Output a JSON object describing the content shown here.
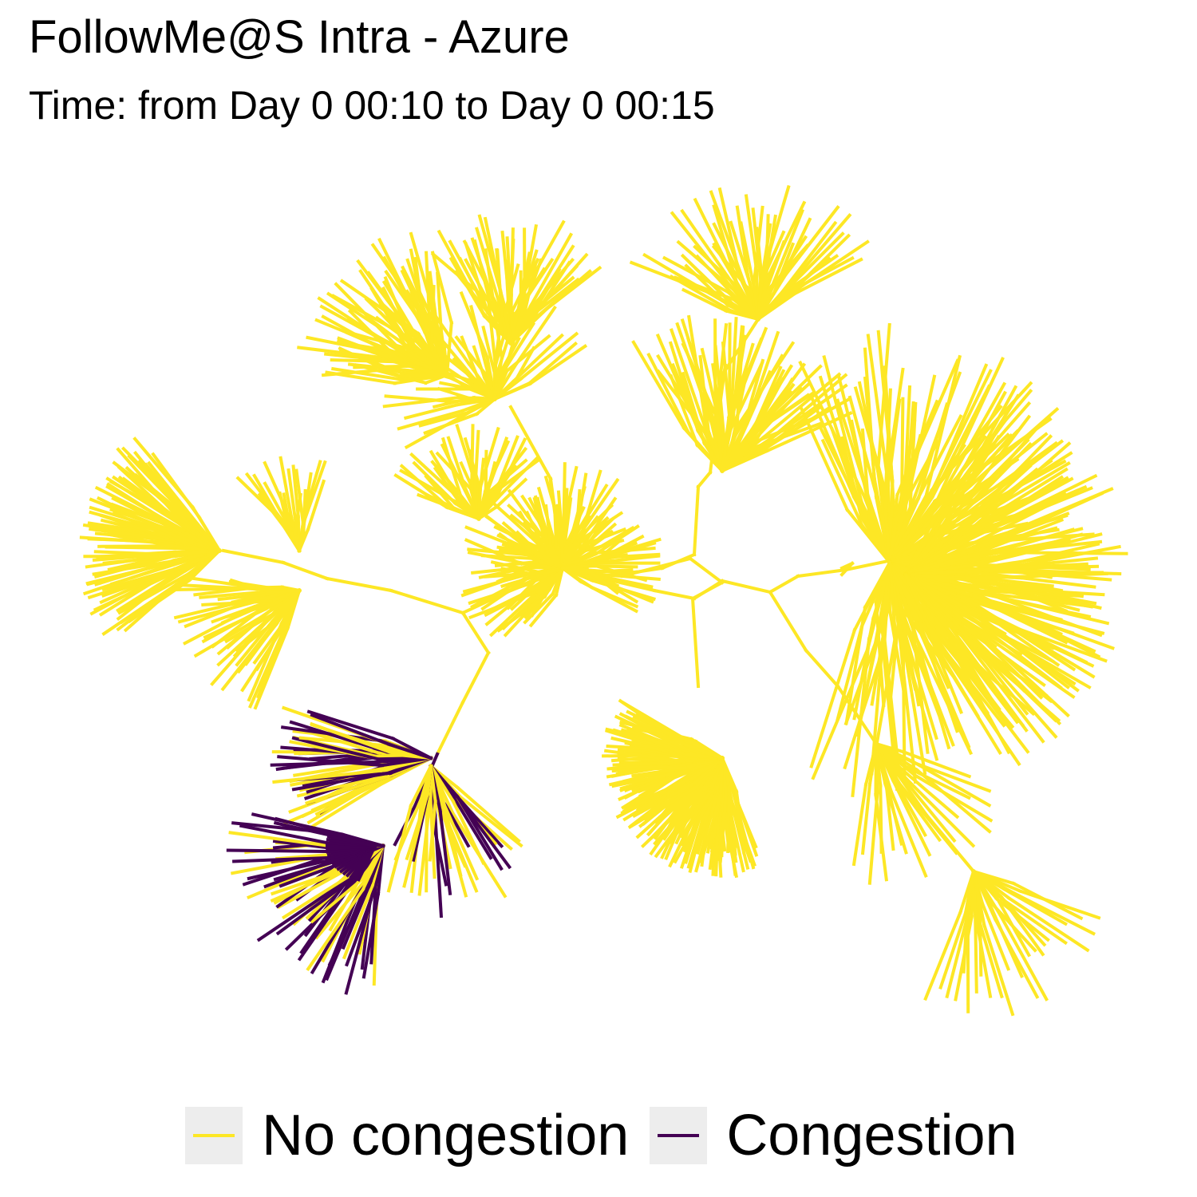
{
  "title": "FollowMe@S Intra - Azure",
  "subtitle": "Time: from Day 0 00:10 to Day 0 00:15",
  "colors": {
    "no_congestion": "#fde725",
    "congestion": "#440154"
  },
  "legend": {
    "items": [
      {
        "label": "No congestion",
        "color": "#fde725"
      },
      {
        "label": "Congestion",
        "color": "#440154"
      }
    ]
  }
}
